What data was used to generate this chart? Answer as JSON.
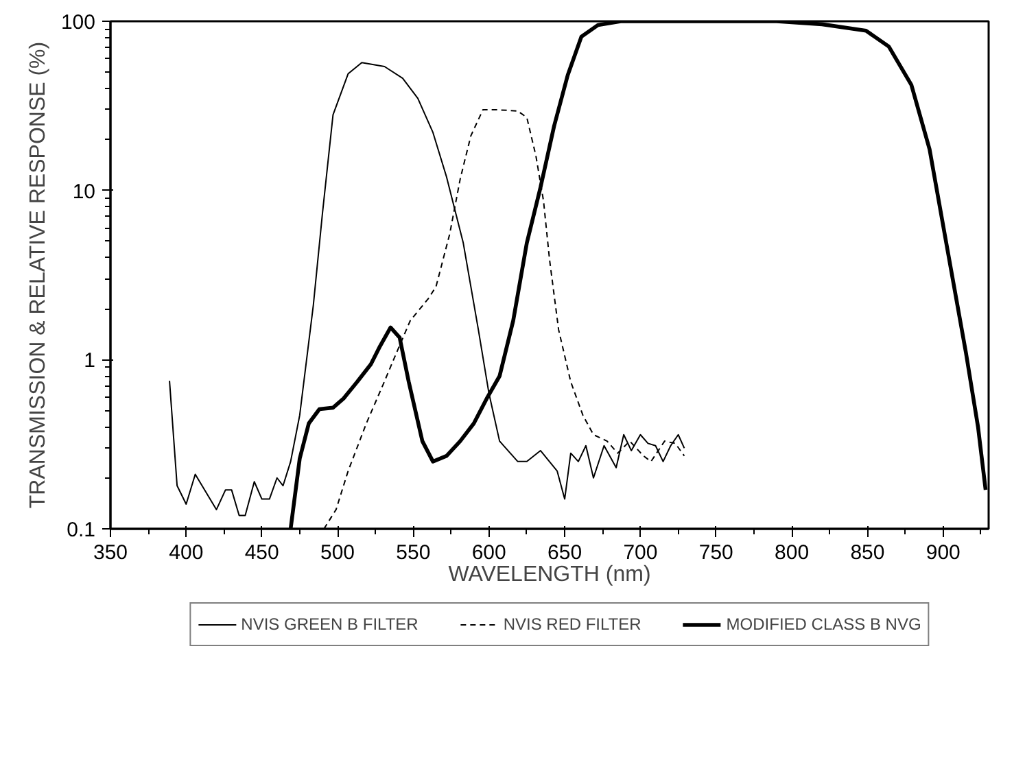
{
  "chart_data": {
    "type": "line",
    "xlabel": "WAVELENGTH (nm)",
    "ylabel": "TRANSMISSION & RELATIVE RESPONSE (%)",
    "log": "y",
    "xlim": [
      350,
      930
    ],
    "xticks": [
      350,
      400,
      450,
      500,
      550,
      600,
      650,
      700,
      750,
      800,
      850,
      900
    ],
    "ylim": [
      0.1,
      100
    ],
    "yticks": [
      0.1,
      1,
      10,
      100
    ],
    "grid": false,
    "legend": "bottom",
    "marker": "none",
    "series": [
      {
        "name": "NVIS GREEN B FILTER",
        "color": "#000000",
        "line_style": "solid",
        "x": [
          389,
          394,
          400,
          406,
          420,
          426,
          430,
          435,
          439,
          445,
          450,
          455,
          460,
          464,
          469,
          475,
          484,
          490,
          497,
          507,
          516,
          531,
          543,
          553,
          563,
          572,
          583,
          593,
          600,
          607,
          619,
          625,
          634,
          645,
          650,
          654,
          659,
          664,
          669,
          676,
          684,
          689,
          694,
          700,
          705,
          710,
          715,
          720,
          725,
          729
        ],
        "values": [
          0.75,
          0.18,
          0.14,
          0.21,
          0.13,
          0.17,
          0.17,
          0.12,
          0.12,
          0.19,
          0.15,
          0.15,
          0.2,
          0.18,
          0.25,
          0.47,
          2.1,
          7.3,
          28,
          49,
          57,
          54,
          46,
          35,
          22,
          12,
          4.9,
          1.5,
          0.63,
          0.33,
          0.25,
          0.25,
          0.29,
          0.22,
          0.15,
          0.28,
          0.25,
          0.31,
          0.2,
          0.31,
          0.23,
          0.36,
          0.29,
          0.36,
          0.32,
          0.31,
          0.25,
          0.31,
          0.36,
          0.3
        ]
      },
      {
        "name": "NVIS RED FILTER",
        "color": "#000000",
        "line_style": "dashed",
        "x": [
          491,
          499,
          507,
          519,
          530,
          538,
          548,
          560,
          565,
          574,
          581,
          588,
          596,
          605,
          619,
          625,
          631,
          636,
          640,
          646,
          654,
          662,
          669,
          678,
          685,
          693,
          702,
          707,
          716,
          723,
          729
        ],
        "values": [
          0.1,
          0.13,
          0.22,
          0.42,
          0.71,
          1.05,
          1.7,
          2.3,
          2.7,
          5.5,
          11.7,
          21,
          30,
          30,
          29.5,
          27,
          16,
          8.7,
          3.9,
          1.5,
          0.74,
          0.47,
          0.36,
          0.33,
          0.28,
          0.33,
          0.27,
          0.25,
          0.33,
          0.32,
          0.27
        ]
      },
      {
        "name": "MODIFIED CLASS B NVG",
        "color": "#000000",
        "line_style": "solid",
        "x": [
          469,
          475,
          481,
          488,
          497,
          504,
          513,
          522,
          528,
          535,
          541,
          547,
          556,
          563,
          572,
          581,
          590,
          599,
          607,
          616,
          625,
          634,
          643,
          652,
          661,
          672,
          687,
          731,
          790,
          820,
          849,
          864,
          879,
          891,
          902,
          915,
          923,
          928
        ],
        "values": [
          0.1,
          0.26,
          0.42,
          0.51,
          0.52,
          0.59,
          0.74,
          0.94,
          1.2,
          1.55,
          1.35,
          0.74,
          0.33,
          0.25,
          0.27,
          0.33,
          0.42,
          0.6,
          0.8,
          1.7,
          4.9,
          10.4,
          24,
          48,
          81,
          95,
          100,
          100,
          100,
          96,
          88,
          71,
          42,
          17.5,
          4.9,
          1.1,
          0.4,
          0.17
        ]
      }
    ]
  }
}
